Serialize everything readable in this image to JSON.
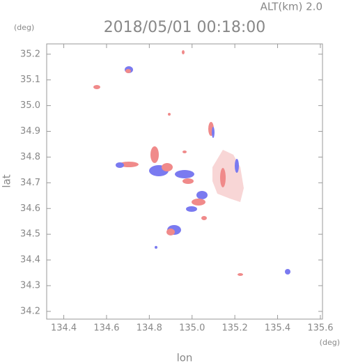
{
  "chart_data": {
    "type": "map",
    "title": "2018/05/01 00:18:00",
    "annotation": "ALT(km) 2.0",
    "xlabel": "lon",
    "ylabel": "lat",
    "xunit": "(deg)",
    "yunit": "(deg)",
    "xlim": [
      134.32,
      135.61
    ],
    "ylim": [
      34.17,
      35.24
    ],
    "xticks": [
      134.4,
      134.6,
      134.8,
      {
        "value": 135,
        "label": "135.0"
      },
      135.2,
      135.4,
      135.6
    ],
    "yticks": [
      34.2,
      34.3,
      34.4,
      34.5,
      34.6,
      34.7,
      34.8,
      34.9,
      {
        "value": 35,
        "label": "35.0"
      },
      35.1,
      35.2
    ]
  }
}
